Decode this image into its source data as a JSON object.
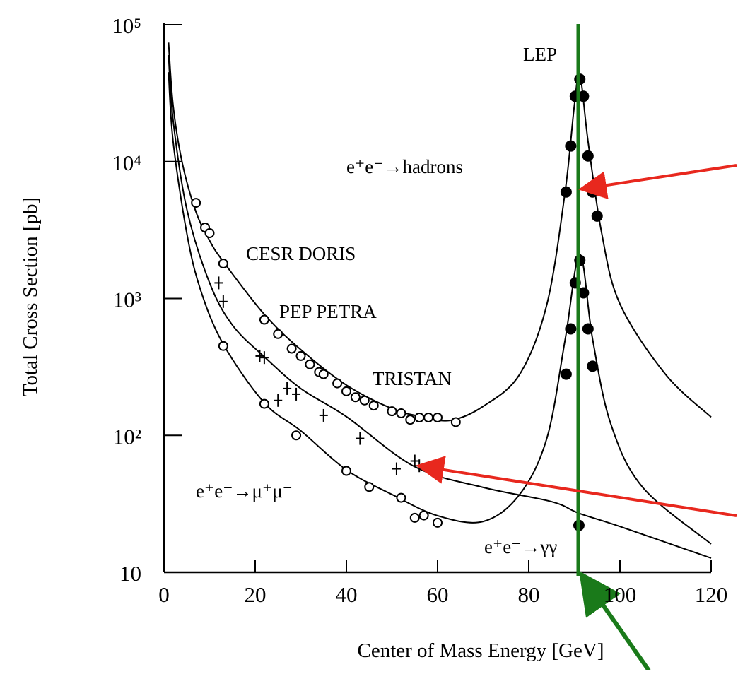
{
  "chart_data": {
    "type": "line",
    "xlabel": "Center of Mass Energy  [GeV]",
    "ylabel": "Total Cross Section  [pb]",
    "yscale": "log",
    "xlim": [
      0,
      120
    ],
    "ylim": [
      10,
      100000
    ],
    "xticks": [
      0,
      20,
      40,
      60,
      80,
      100,
      120
    ],
    "yticks": [
      10,
      {
        "value": 100,
        "label": "10²"
      },
      {
        "value": 1000,
        "label": "10³"
      },
      {
        "value": 10000,
        "label": "10⁴"
      },
      {
        "value": 100000,
        "label": "10⁵"
      }
    ],
    "annotations": [
      "LEP",
      "e⁺e⁻→hadrons",
      "CESR DORIS",
      "PEP  PETRA",
      "TRISTAN",
      "e⁺e⁻→μ⁺μ⁻",
      "e⁺e⁻→γγ"
    ],
    "series": [
      {
        "color": "#000000",
        "marker": "none",
        "x": [
          1,
          2,
          4,
          7,
          10,
          13,
          22,
          30,
          40,
          50,
          57,
          63,
          70,
          78,
          84,
          88,
          90,
          91.2,
          93,
          96,
          100,
          110,
          120
        ],
        "values": [
          74000,
          25700,
          9800,
          4300,
          2650,
          1860,
          766,
          423,
          233,
          157,
          136,
          129,
          163,
          279,
          913,
          6120,
          25700,
          43600,
          14100,
          3000,
          913,
          279,
          136
        ]
      },
      {
        "color": "#000000",
        "marker": "none",
        "x": [
          1,
          2,
          5,
          10,
          15,
          22,
          30,
          40,
          55,
          70,
          85,
          91,
          100,
          120
        ],
        "values": [
          60000,
          20000,
          4500,
          1300,
          640,
          375,
          220,
          137,
          59,
          41.7,
          32.8,
          27,
          21.6,
          12.7
        ]
      },
      {
        "color": "#000000",
        "marker": "none",
        "x": [
          1,
          2,
          5,
          8,
          13,
          22,
          30,
          40,
          50,
          60,
          70,
          78,
          84,
          88,
          91.2,
          94,
          98,
          105,
          120
        ],
        "values": [
          45000,
          14000,
          3000,
          1160,
          464,
          173,
          108,
          56,
          37,
          25.9,
          23.5,
          37,
          96,
          505,
          2100,
          505,
          121,
          41.7,
          16.1
        ]
      },
      {
        "color": "#000000",
        "marker": "open",
        "x": [
          7,
          9,
          10,
          13,
          22,
          25,
          28,
          30,
          32,
          34,
          35,
          38,
          40,
          42,
          44,
          46,
          50,
          52,
          54,
          56,
          58,
          60,
          64
        ],
        "values": [
          5000,
          3300,
          3000,
          1800,
          700,
          550,
          430,
          380,
          330,
          290,
          280,
          240,
          210,
          190,
          180,
          165,
          150,
          145,
          130,
          135,
          135,
          135,
          125
        ]
      },
      {
        "color": "#000000",
        "marker": "cross",
        "x": [
          12,
          13,
          21,
          22,
          25,
          27,
          29,
          35,
          43,
          51,
          55,
          56
        ],
        "values": [
          1300,
          950,
          380,
          370,
          180,
          220,
          200,
          140,
          95,
          57,
          65,
          60
        ]
      },
      {
        "color": "#000000",
        "marker": "open",
        "x": [
          13,
          22,
          29,
          40,
          45,
          52,
          55,
          57,
          60
        ],
        "values": [
          450,
          170,
          100,
          55,
          42,
          35,
          25,
          26,
          23
        ]
      },
      {
        "color": "#000000",
        "marker": "filled",
        "x": [
          88.2,
          89.2,
          90.2,
          91.2,
          92,
          93,
          94,
          95
        ],
        "values": [
          6000,
          13000,
          30000,
          40000,
          30000,
          11000,
          6000,
          4000
        ]
      },
      {
        "color": "#000000",
        "marker": "filled",
        "x": [
          88.2,
          89.2,
          90.2,
          91.2,
          92,
          93,
          94,
          91
        ],
        "values": [
          280,
          600,
          1300,
          1900,
          1100,
          600,
          320,
          22
        ]
      }
    ]
  }
}
